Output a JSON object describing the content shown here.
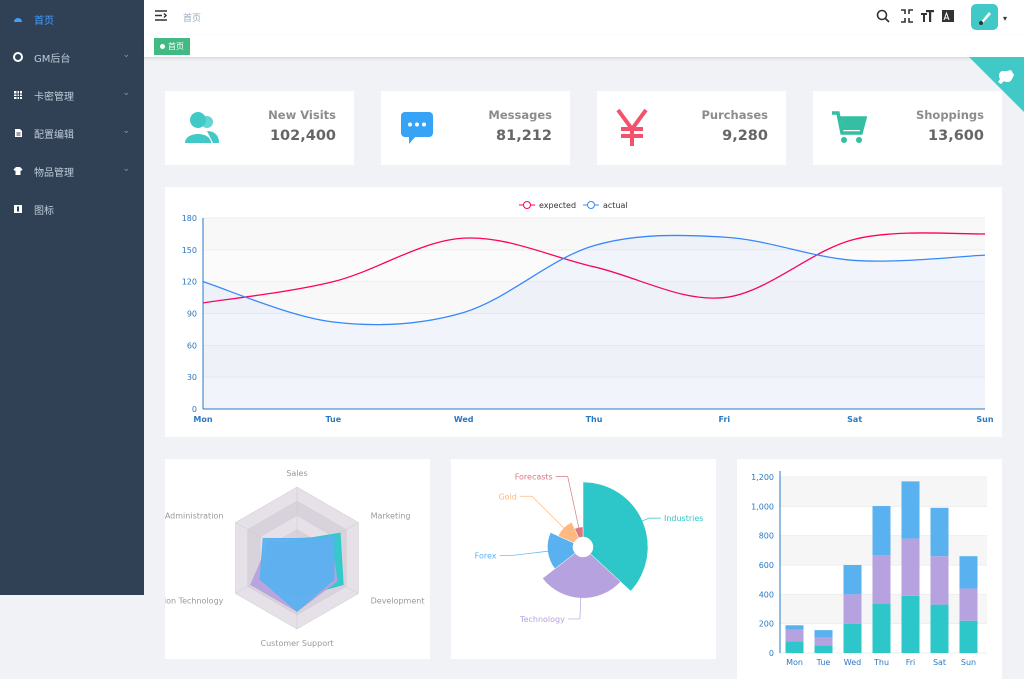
{
  "sidebar": {
    "items": [
      "首页",
      "GM后台",
      "卡密管理",
      "配置编辑",
      "物品管理",
      "图标"
    ]
  },
  "navbar": {
    "breadcrumb": "首页"
  },
  "tags": [
    "首页"
  ],
  "panels": [
    {
      "title": "New Visits",
      "value": "102,400"
    },
    {
      "title": "Messages",
      "value": "81,212"
    },
    {
      "title": "Purchases",
      "value": "9,280"
    },
    {
      "title": "Shoppings",
      "value": "13,600"
    }
  ],
  "chart_data": [
    {
      "type": "line",
      "categories": [
        "Mon",
        "Tue",
        "Wed",
        "Thu",
        "Fri",
        "Sat",
        "Sun"
      ],
      "series": [
        {
          "name": "expected",
          "color": "#FF005A",
          "values": [
            100,
            120,
            161,
            134,
            105,
            160,
            165
          ]
        },
        {
          "name": "actual",
          "color": "#3888fa",
          "values": [
            120,
            82,
            91,
            154,
            162,
            140,
            145
          ]
        }
      ],
      "ylim": [
        0,
        180
      ],
      "yticks": [
        0,
        30,
        60,
        90,
        120,
        150,
        180
      ],
      "grid": true
    },
    {
      "type": "radar",
      "indicators": [
        "Sales",
        "Administration",
        "Information Technology",
        "Customer Support",
        "Development",
        "Marketing"
      ],
      "rlim": [
        0,
        20000
      ],
      "series": [
        {
          "color": "#2ec7c9",
          "values": [
            5000,
            7000,
            12000,
            11000,
            15000,
            14000
          ]
        },
        {
          "color": "#b6a2de",
          "values": [
            4000,
            9000,
            15000,
            15000,
            13000,
            11000
          ]
        },
        {
          "color": "#5ab1ef",
          "values": [
            5500,
            11000,
            12000,
            15000,
            12000,
            12000
          ]
        }
      ]
    },
    {
      "type": "pie",
      "categories": [
        "Industries",
        "Technology",
        "Forex",
        "Gold",
        "Forecasts"
      ],
      "values": [
        320,
        240,
        149,
        100,
        59
      ],
      "colors": [
        "#2ec7c9",
        "#b6a2de",
        "#5ab1ef",
        "#ffb980",
        "#d87a80"
      ]
    },
    {
      "type": "bar",
      "categories": [
        "Mon",
        "Tue",
        "Wed",
        "Thu",
        "Fri",
        "Sat",
        "Sun"
      ],
      "series": [
        {
          "color": "#2ec7c9",
          "values": [
            79,
            52,
            200,
            334,
            390,
            330,
            220
          ]
        },
        {
          "color": "#b6a2de",
          "values": [
            80,
            52,
            200,
            334,
            390,
            330,
            220
          ]
        },
        {
          "color": "#5ab1ef",
          "values": [
            30,
            52,
            200,
            334,
            390,
            330,
            220
          ]
        }
      ],
      "ylim": [
        0,
        1200
      ],
      "yticks": [
        0,
        200,
        400,
        600,
        800,
        {
          "value": 1000,
          "label": "1,000"
        },
        {
          "value": 1200,
          "label": "1,200"
        }
      ],
      "grid": true
    }
  ]
}
